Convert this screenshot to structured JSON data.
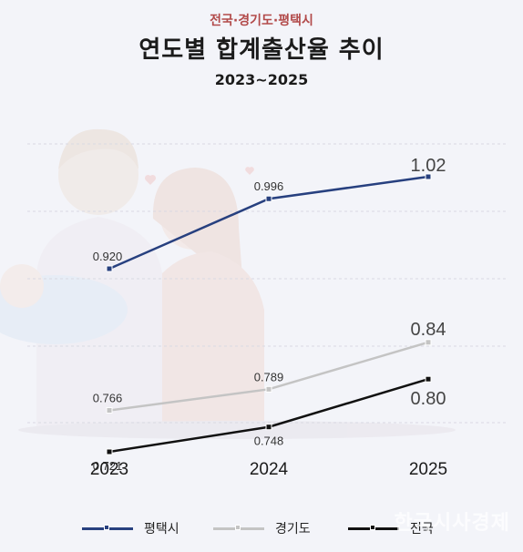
{
  "header": {
    "supertitle": "전국·경기도·평택시",
    "title": "연도별 합계출산율 추이",
    "subtitle": "2023~2025"
  },
  "chart_data": {
    "type": "line",
    "categories": [
      "2023",
      "2024",
      "2025"
    ],
    "series": [
      {
        "name": "평택시",
        "values": [
          0.92,
          0.996,
          1.02
        ],
        "labels": [
          "0.920",
          "0.996",
          "1.02"
        ],
        "color": "#27407f"
      },
      {
        "name": "경기도",
        "values": [
          0.766,
          0.789,
          0.84
        ],
        "labels": [
          "0.766",
          "0.789",
          "0.84"
        ],
        "color": "#c4c4c4"
      },
      {
        "name": "전국",
        "values": [
          0.721,
          0.748,
          0.8
        ],
        "labels": [
          "0.721",
          "0.748",
          "0.80"
        ],
        "color": "#111111"
      }
    ],
    "legend_position": "bottom",
    "grid": true
  },
  "watermark": "한국시사경제"
}
